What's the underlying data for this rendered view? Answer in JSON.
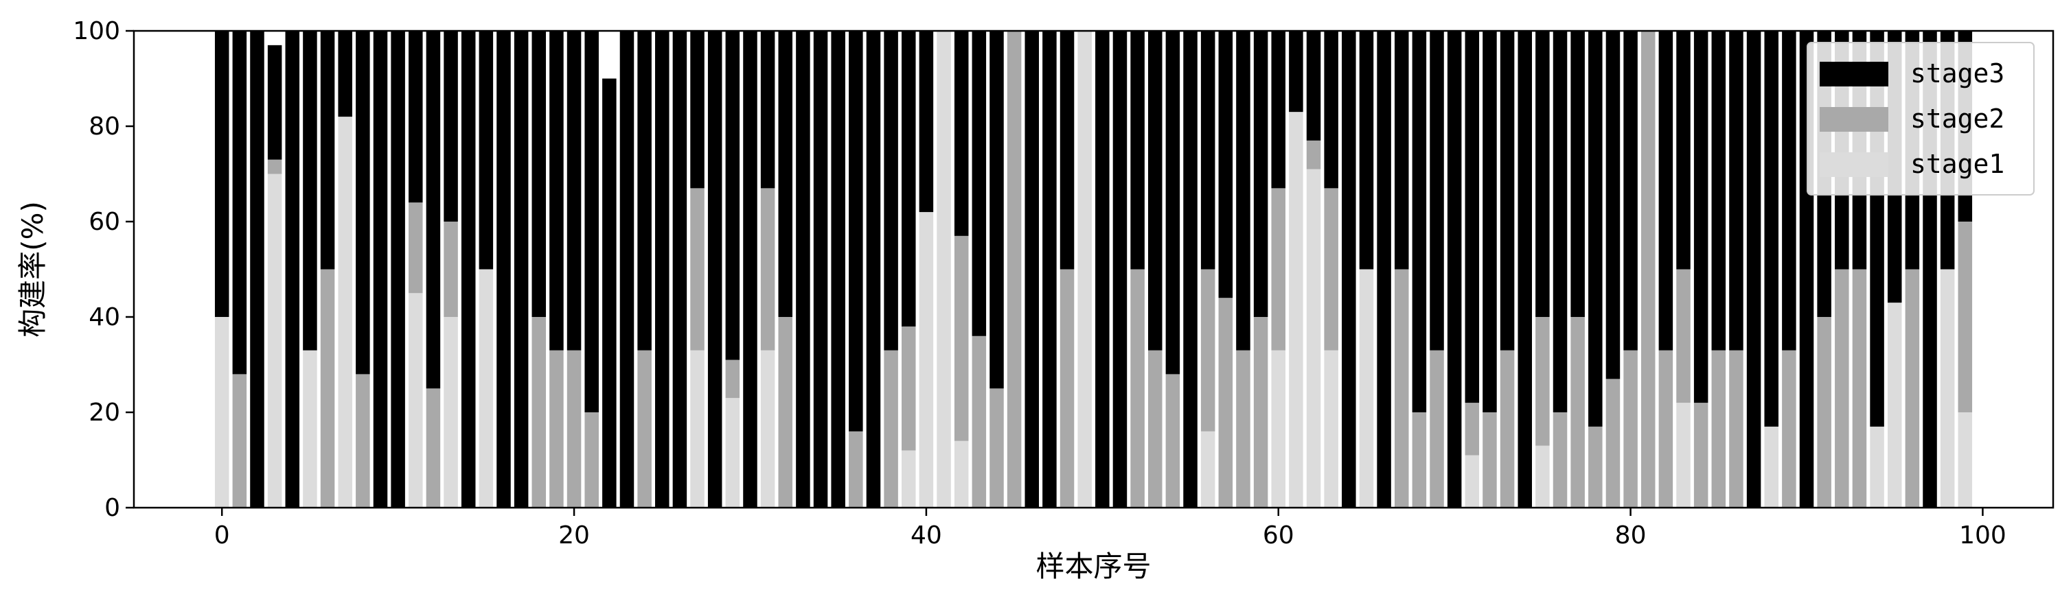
{
  "chart_data": {
    "type": "bar",
    "stacked": true,
    "xlabel": "样本序号",
    "ylabel": "构建率(%)",
    "ylim": [
      0,
      100
    ],
    "xlim": [
      -5,
      104
    ],
    "xticks": [
      0,
      20,
      40,
      60,
      80,
      100
    ],
    "yticks": [
      0,
      20,
      40,
      60,
      80,
      100
    ],
    "legend_position": "top-right",
    "x": [
      0,
      1,
      2,
      3,
      4,
      5,
      6,
      7,
      8,
      9,
      10,
      11,
      12,
      13,
      14,
      15,
      16,
      17,
      18,
      19,
      20,
      21,
      22,
      23,
      24,
      25,
      26,
      27,
      28,
      29,
      30,
      31,
      32,
      33,
      34,
      35,
      36,
      37,
      38,
      39,
      40,
      41,
      42,
      43,
      44,
      45,
      46,
      47,
      48,
      49,
      50,
      51,
      52,
      53,
      54,
      55,
      56,
      57,
      58,
      59,
      60,
      61,
      62,
      63,
      64,
      65,
      66,
      67,
      68,
      69,
      70,
      71,
      72,
      73,
      74,
      75,
      76,
      77,
      78,
      79,
      80,
      81,
      82,
      83,
      84,
      85,
      86,
      87,
      88,
      89,
      90,
      91,
      92,
      93,
      94,
      95,
      96,
      97,
      98,
      99
    ],
    "series": [
      {
        "name": "stage1",
        "color": "#dcdcdc",
        "values": [
          40,
          0,
          0,
          70,
          0,
          33,
          0,
          82,
          0,
          0,
          0,
          45,
          0,
          40,
          0,
          50,
          0,
          0,
          0,
          0,
          0,
          0,
          0,
          0,
          0,
          0,
          0,
          33,
          0,
          23,
          0,
          33,
          0,
          0,
          0,
          0,
          0,
          0,
          0,
          12,
          62,
          100,
          14,
          0,
          0,
          0,
          0,
          0,
          0,
          100,
          0,
          0,
          0,
          0,
          0,
          0,
          16,
          0,
          0,
          0,
          33,
          83,
          71,
          33,
          0,
          50,
          0,
          0,
          0,
          0,
          0,
          11,
          0,
          0,
          0,
          13,
          0,
          0,
          0,
          0,
          0,
          0,
          0,
          22,
          0,
          0,
          0,
          0,
          17,
          0,
          0,
          0,
          0,
          0,
          17,
          43,
          0,
          0,
          50,
          20
        ]
      },
      {
        "name": "stage2",
        "color": "#a9a9a9",
        "values": [
          0,
          28,
          0,
          3,
          0,
          0,
          50,
          0,
          28,
          0,
          0,
          19,
          25,
          20,
          0,
          0,
          0,
          0,
          40,
          33,
          33,
          20,
          0,
          0,
          33,
          0,
          0,
          34,
          0,
          8,
          0,
          34,
          40,
          0,
          0,
          0,
          16,
          0,
          33,
          26,
          0,
          0,
          43,
          36,
          25,
          100,
          0,
          0,
          50,
          0,
          0,
          0,
          50,
          33,
          28,
          0,
          34,
          44,
          33,
          40,
          34,
          0,
          6,
          34,
          0,
          0,
          0,
          50,
          20,
          33,
          0,
          11,
          20,
          33,
          0,
          27,
          20,
          40,
          17,
          27,
          33,
          100,
          33,
          28,
          22,
          33,
          33,
          0,
          0,
          33,
          0,
          40,
          50,
          50,
          0,
          0,
          50,
          0,
          0,
          40
        ]
      },
      {
        "name": "stage3",
        "color": "#000000",
        "values": [
          60,
          72,
          100,
          24,
          100,
          67,
          50,
          18,
          72,
          100,
          100,
          36,
          75,
          40,
          100,
          50,
          100,
          100,
          60,
          67,
          67,
          80,
          90,
          100,
          67,
          100,
          100,
          33,
          100,
          69,
          100,
          33,
          60,
          100,
          100,
          100,
          84,
          100,
          67,
          62,
          38,
          0,
          43,
          64,
          75,
          0,
          100,
          100,
          50,
          0,
          100,
          100,
          50,
          67,
          72,
          100,
          50,
          56,
          67,
          60,
          33,
          17,
          23,
          33,
          100,
          50,
          100,
          50,
          80,
          67,
          100,
          78,
          80,
          67,
          100,
          60,
          80,
          60,
          83,
          73,
          67,
          0,
          67,
          50,
          78,
          67,
          67,
          100,
          83,
          67,
          100,
          60,
          50,
          50,
          83,
          57,
          50,
          100,
          50,
          40
        ]
      }
    ]
  }
}
